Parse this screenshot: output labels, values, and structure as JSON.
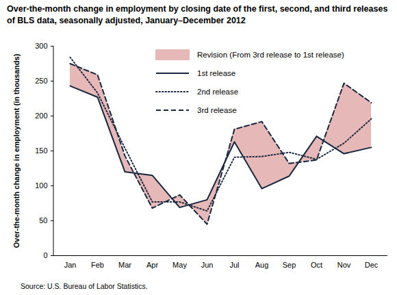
{
  "chart_data": {
    "type": "line",
    "title": "Over-the-month change in employment by closing date of the first, second, and third releases of BLS data, seasonally adjusted, January–December 2012",
    "caption": "Source: U.S. Bureau of Labor Statistics.",
    "y_label": "Over-the-month change in employment (in thousands)",
    "categories": [
      "Jan",
      "Feb",
      "Mar",
      "Apr",
      "May",
      "Jun",
      "Jul",
      "Aug",
      "Sep",
      "Oct",
      "Nov",
      "Dec"
    ],
    "series": [
      {
        "name": "Revision (From 3rd release to 1st release)",
        "type": "area",
        "color": "#e6b8b7",
        "from": "3rd release",
        "to": "1st release"
      },
      {
        "name": "1st release",
        "type": "line",
        "color": "#17263f",
        "line_style": "solid",
        "values": [
          243,
          227,
          120,
          115,
          69,
          80,
          163,
          96,
          114,
          171,
          146,
          155
        ]
      },
      {
        "name": "2nd release",
        "type": "line",
        "color": "#17263f",
        "line_style": "dotted",
        "values": [
          284,
          233,
          154,
          77,
          77,
          64,
          141,
          142,
          148,
          138,
          161,
          196
        ]
      },
      {
        "name": "3rd release",
        "type": "line",
        "color": "#17263f",
        "line_style": "dashed",
        "values": [
          275,
          259,
          143,
          68,
          87,
          45,
          181,
          192,
          132,
          137,
          247,
          219
        ]
      }
    ],
    "ylim": [
      0,
      300
    ],
    "yticks": [
      0,
      50,
      100,
      150,
      200,
      250,
      300
    ],
    "grid": false,
    "legend": "top-right"
  }
}
